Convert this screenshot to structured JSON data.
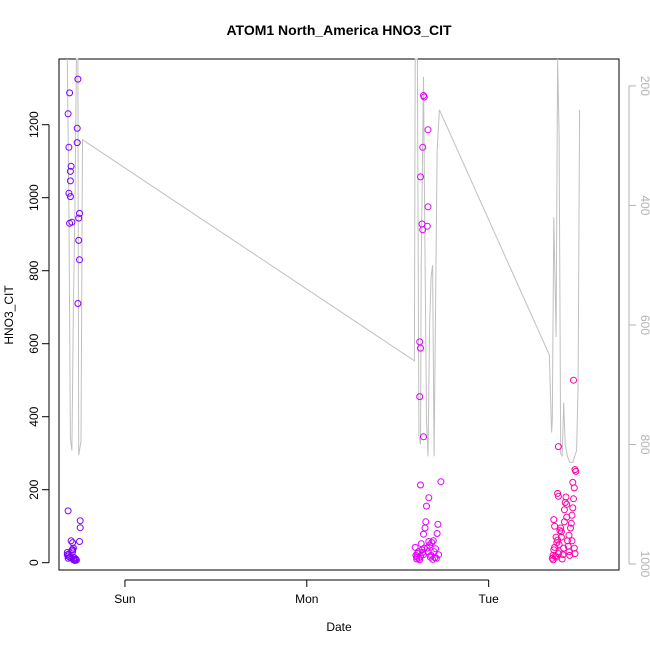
{
  "chart_data": {
    "type": "scatter",
    "title": "ATOM1 North_America HNO3_CIT",
    "xlabel": "Date",
    "ylabel": "HNO3_CIT",
    "x_tick_labels": [
      "Sun",
      "Mon",
      "Tue"
    ],
    "x_ticks_hours": [
      24,
      48,
      72
    ],
    "xlim_hours": [
      15.3,
      89.2
    ],
    "ylim": [
      -20,
      1380
    ],
    "y_ticks": [
      0,
      200,
      400,
      600,
      800,
      1000,
      1200
    ],
    "secondary_axis": {
      "label": "",
      "reversed": true,
      "ticks": [
        200,
        400,
        600,
        800,
        1000
      ],
      "lim": [
        1010,
        155
      ],
      "color": "#b3b3b3"
    },
    "grid": false,
    "legend": "none",
    "series": [
      {
        "color": "#7f00ff",
        "points": [
          [
            16.5,
            142
          ],
          [
            16.5,
            1230
          ],
          [
            16.6,
            1138
          ],
          [
            16.7,
            1287
          ],
          [
            16.6,
            1012
          ],
          [
            16.8,
            1046
          ],
          [
            16.8,
            1072
          ],
          [
            16.9,
            1086
          ],
          [
            16.8,
            1003
          ],
          [
            16.7,
            930
          ],
          [
            17.0,
            933
          ],
          [
            17.8,
            1325
          ],
          [
            17.7,
            1190
          ],
          [
            17.7,
            1151
          ],
          [
            17.8,
            710
          ],
          [
            18.0,
            957
          ],
          [
            17.9,
            944
          ],
          [
            17.9,
            883
          ],
          [
            18.0,
            830
          ],
          [
            18.1,
            115
          ],
          [
            18.1,
            96
          ],
          [
            18.0,
            58
          ],
          [
            16.4,
            28
          ],
          [
            16.4,
            22
          ],
          [
            16.5,
            18
          ],
          [
            16.5,
            12
          ],
          [
            16.6,
            24
          ],
          [
            16.7,
            15
          ],
          [
            16.9,
            60
          ],
          [
            17.1,
            55
          ],
          [
            17.0,
            34
          ],
          [
            17.2,
            40
          ],
          [
            17.1,
            30
          ],
          [
            17.3,
            14
          ],
          [
            17.3,
            9
          ],
          [
            17.4,
            6
          ],
          [
            17.5,
            10
          ],
          [
            17.2,
            8
          ],
          [
            17.1,
            36
          ],
          [
            17.6,
            7
          ],
          [
            17.0,
            12
          ]
        ]
      },
      {
        "color": "#e100ff",
        "points": [
          [
            62.3,
            42
          ],
          [
            62.4,
            20
          ],
          [
            62.5,
            15
          ],
          [
            62.5,
            10
          ],
          [
            62.6,
            25
          ],
          [
            62.7,
            30
          ],
          [
            62.8,
            12
          ],
          [
            62.9,
            8
          ],
          [
            63.0,
            18
          ],
          [
            63.1,
            52
          ],
          [
            63.2,
            35
          ],
          [
            63.3,
            28
          ],
          [
            63.4,
            22
          ],
          [
            63.5,
            40
          ],
          [
            63.6,
            95
          ],
          [
            63.7,
            112
          ],
          [
            63.8,
            155
          ],
          [
            63.9,
            40
          ],
          [
            64.0,
            30
          ],
          [
            64.1,
            58
          ],
          [
            64.2,
            48
          ],
          [
            64.3,
            15
          ],
          [
            64.4,
            20
          ],
          [
            64.5,
            55
          ],
          [
            64.6,
            9
          ],
          [
            64.7,
            60
          ],
          [
            64.8,
            30
          ],
          [
            64.9,
            14
          ],
          [
            65.0,
            38
          ],
          [
            65.1,
            12
          ],
          [
            65.2,
            80
          ],
          [
            65.3,
            105
          ],
          [
            65.4,
            22
          ],
          [
            62.9,
            605
          ],
          [
            63.0,
            588
          ],
          [
            62.9,
            455
          ],
          [
            63.0,
            1057
          ],
          [
            63.4,
            1280
          ],
          [
            63.5,
            1276
          ],
          [
            63.3,
            1138
          ],
          [
            63.2,
            928
          ],
          [
            63.3,
            912
          ],
          [
            63.4,
            345
          ],
          [
            64.0,
            1186
          ],
          [
            64.0,
            975
          ],
          [
            63.9,
            922
          ],
          [
            63.0,
            213
          ],
          [
            64.1,
            178
          ],
          [
            65.7,
            222
          ],
          [
            63.4,
            78
          ]
        ]
      },
      {
        "color": "#ff00aa",
        "points": [
          [
            80.4,
            12
          ],
          [
            80.5,
            20
          ],
          [
            80.6,
            35
          ],
          [
            80.7,
            42
          ],
          [
            80.8,
            18
          ],
          [
            80.9,
            15
          ],
          [
            81.0,
            55
          ],
          [
            81.1,
            62
          ],
          [
            81.2,
            25
          ],
          [
            81.3,
            30
          ],
          [
            81.4,
            88
          ],
          [
            81.5,
            95
          ],
          [
            81.6,
            70
          ],
          [
            81.7,
            10
          ],
          [
            81.8,
            22
          ],
          [
            81.9,
            40
          ],
          [
            82.0,
            145
          ],
          [
            82.1,
            165
          ],
          [
            82.2,
            180
          ],
          [
            82.3,
            125
          ],
          [
            82.4,
            60
          ],
          [
            82.5,
            45
          ],
          [
            82.6,
            30
          ],
          [
            82.7,
            20
          ],
          [
            82.8,
            95
          ],
          [
            82.9,
            108
          ],
          [
            83.0,
            130
          ],
          [
            83.1,
            150
          ],
          [
            83.2,
            175
          ],
          [
            83.3,
            205
          ],
          [
            83.4,
            255
          ],
          [
            83.5,
            250
          ],
          [
            81.2,
            318
          ],
          [
            83.2,
            500
          ],
          [
            80.6,
            118
          ],
          [
            80.7,
            100
          ],
          [
            81.1,
            190
          ],
          [
            81.2,
            182
          ],
          [
            82.0,
            112
          ],
          [
            82.3,
            160
          ],
          [
            83.3,
            40
          ],
          [
            83.4,
            25
          ],
          [
            83.1,
            220
          ],
          [
            80.9,
            70
          ],
          [
            81.6,
            85
          ],
          [
            82.6,
            75
          ],
          [
            83.0,
            60
          ],
          [
            81.3,
            50
          ],
          [
            80.5,
            8
          ]
        ]
      }
    ],
    "secondary_line": {
      "color": "#c0c0c0",
      "points": [
        [
          16.4,
          150
        ],
        [
          16.6,
          405
        ],
        [
          16.8,
          790
        ],
        [
          17.0,
          810
        ],
        [
          17.2,
          570
        ],
        [
          17.4,
          410
        ],
        [
          17.6,
          150
        ],
        [
          17.8,
          150
        ],
        [
          17.9,
          818
        ],
        [
          18.2,
          795
        ],
        [
          18.4,
          290
        ],
        [
          62.2,
          660
        ],
        [
          62.3,
          150
        ],
        [
          62.6,
          150
        ],
        [
          62.8,
          785
        ],
        [
          63.0,
          800
        ],
        [
          63.1,
          500
        ],
        [
          63.4,
          185
        ],
        [
          63.6,
          480
        ],
        [
          63.8,
          760
        ],
        [
          64.0,
          820
        ],
        [
          64.2,
          600
        ],
        [
          64.4,
          520
        ],
        [
          64.6,
          500
        ],
        [
          64.8,
          820
        ],
        [
          65.2,
          310
        ],
        [
          65.5,
          240
        ],
        [
          80.0,
          650
        ],
        [
          80.3,
          780
        ],
        [
          80.4,
          760
        ],
        [
          80.6,
          420
        ],
        [
          80.9,
          620
        ],
        [
          81.1,
          150
        ],
        [
          81.3,
          280
        ],
        [
          81.5,
          815
        ],
        [
          81.7,
          820
        ],
        [
          81.9,
          730
        ],
        [
          82.1,
          800
        ],
        [
          82.4,
          820
        ],
        [
          82.7,
          830
        ],
        [
          83.1,
          830
        ],
        [
          83.6,
          810
        ],
        [
          83.8,
          700
        ],
        [
          84.0,
          240
        ]
      ]
    }
  }
}
